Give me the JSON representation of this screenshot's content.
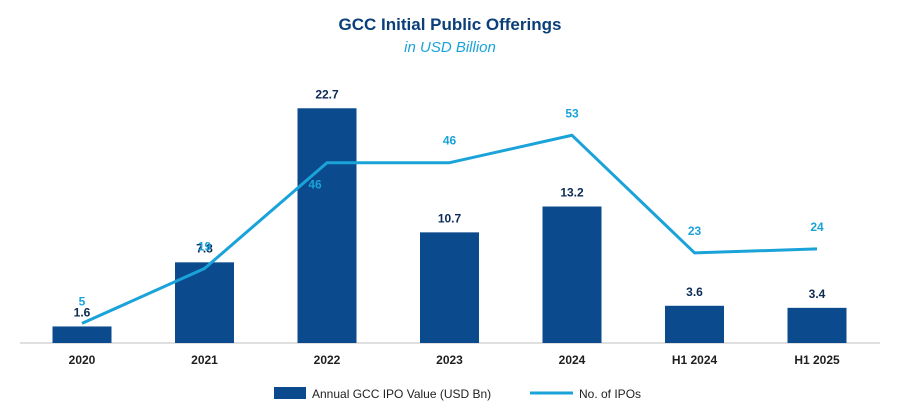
{
  "chart_data": {
    "type": "bar",
    "title": "GCC Initial Public Offerings",
    "subtitle": "in USD Billion",
    "categories": [
      "2020",
      "2021",
      "2022",
      "2023",
      "2024",
      "H1 2024",
      "H1 2025"
    ],
    "series": [
      {
        "name": "Annual GCC IPO Value (USD Bn)",
        "type": "bar",
        "color": "#0b4a8c",
        "values": [
          1.6,
          7.8,
          22.7,
          10.7,
          13.2,
          3.6,
          3.4
        ],
        "labels": [
          "1.6",
          "7.8",
          "22.7",
          "10.7",
          "13.2",
          "3.6",
          "3.4"
        ]
      },
      {
        "name": "No. of IPOs",
        "type": "line",
        "color": "#1aa3d9",
        "values": [
          5,
          19,
          46,
          46,
          53,
          23,
          24
        ],
        "labels": [
          "5",
          "19",
          "46",
          "46",
          "53",
          "23",
          "24"
        ]
      }
    ],
    "ylim_bar": [
      0,
      23.5
    ],
    "ylim_line": [
      0,
      62
    ],
    "grid": false,
    "legend": "bottom"
  }
}
